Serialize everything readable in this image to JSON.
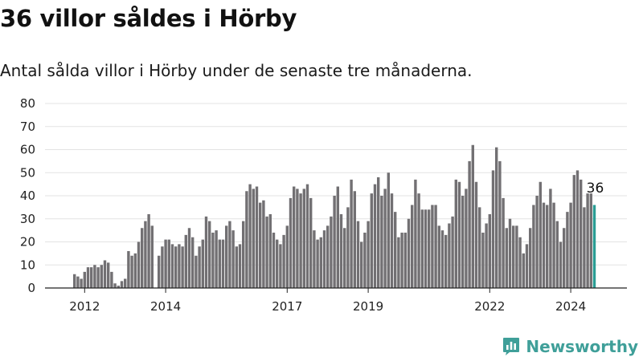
{
  "header": {
    "title": "36 villor såldes i Hörby",
    "subtitle": "Antal sålda villor i Hörby under de senaste tre månaderna."
  },
  "brand": {
    "name": "Newsworthy",
    "logo_icon": "newsworthy-logo-icon",
    "color": "#3f9f99"
  },
  "chart_data": {
    "type": "bar",
    "x_start": "2011-10",
    "interval": "month",
    "values": [
      6,
      5,
      4,
      7,
      9,
      9,
      10,
      9,
      10,
      12,
      11,
      7,
      2,
      1,
      3,
      4,
      16,
      14,
      15,
      20,
      26,
      29,
      32,
      27,
      0,
      14,
      18,
      21,
      21,
      19,
      18,
      19,
      18,
      23,
      26,
      22,
      14,
      18,
      21,
      31,
      29,
      24,
      25,
      21,
      21,
      27,
      29,
      25,
      18,
      19,
      29,
      42,
      45,
      43,
      44,
      37,
      38,
      31,
      32,
      24,
      21,
      19,
      23,
      27,
      39,
      44,
      43,
      41,
      43,
      45,
      39,
      25,
      21,
      22,
      25,
      27,
      31,
      40,
      44,
      32,
      26,
      35,
      47,
      42,
      29,
      20,
      24,
      29,
      41,
      45,
      48,
      40,
      43,
      50,
      41,
      33,
      22,
      24,
      24,
      30,
      36,
      47,
      41,
      34,
      34,
      34,
      36,
      36,
      27,
      25,
      23,
      28,
      31,
      47,
      46,
      40,
      43,
      55,
      62,
      46,
      35,
      24,
      28,
      32,
      51,
      61,
      55,
      39,
      26,
      30,
      27,
      27,
      22,
      15,
      19,
      26,
      36,
      40,
      46,
      37,
      36,
      43,
      37,
      29,
      20,
      26,
      33,
      37,
      49,
      51,
      47,
      35,
      41,
      41,
      36
    ],
    "highlight": {
      "value": 36,
      "label": "36",
      "color": "#2a9d94"
    },
    "bar_color": "#727073",
    "x_tick_labels": [
      "2012",
      "2014",
      "2017",
      "2019",
      "2022",
      "2024"
    ],
    "x_tick_dates": [
      "2012-01",
      "2014-01",
      "2017-01",
      "2019-01",
      "2022-01",
      "2024-01"
    ],
    "ylim": [
      0,
      80
    ],
    "y_ticks": [
      0,
      10,
      20,
      30,
      40,
      50,
      60,
      70,
      80
    ],
    "grid": true,
    "legend": "none"
  }
}
